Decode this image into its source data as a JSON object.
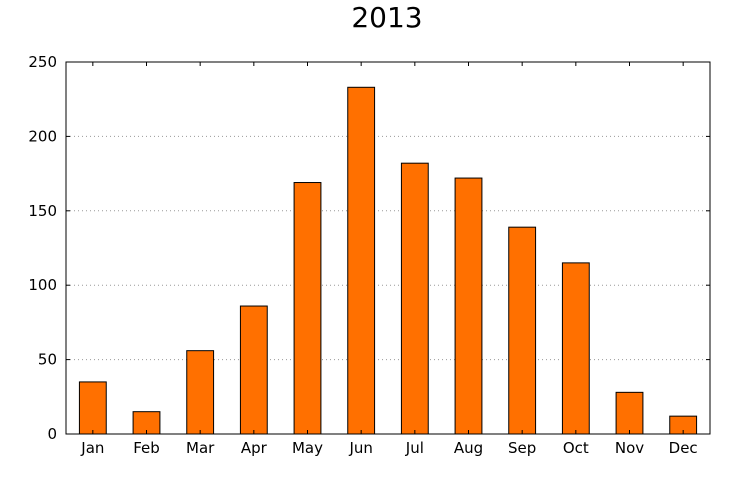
{
  "chart_data": {
    "type": "bar",
    "title": "2013",
    "xlabel": "",
    "ylabel": "",
    "categories": [
      "Jan",
      "Feb",
      "Mar",
      "Apr",
      "May",
      "Jun",
      "Jul",
      "Aug",
      "Sep",
      "Oct",
      "Nov",
      "Dec"
    ],
    "values": [
      35,
      15,
      56,
      86,
      169,
      233,
      182,
      172,
      139,
      115,
      28,
      12
    ],
    "ylim": [
      0,
      250
    ],
    "yticks": [
      0,
      50,
      100,
      150,
      200,
      250
    ],
    "grid": "horizontal dotted",
    "legend": "none",
    "colors": {
      "bar": "#ff7000",
      "bar_edge": "#000000",
      "grid": "#999999"
    }
  }
}
